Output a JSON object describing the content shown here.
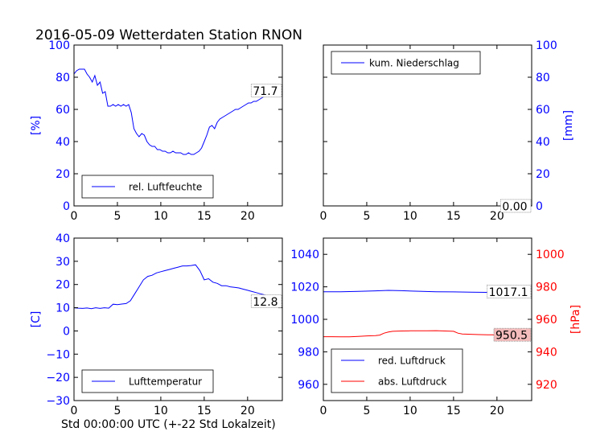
{
  "title": "2016-05-09 Wetterdaten Station RNON",
  "xlabel": "Std 00:00:00 UTC (+-22 Std Lokalzeit)",
  "colors": {
    "blue": "#0000ff",
    "red": "#ff0000",
    "axis": "#000000",
    "frame": "#000000"
  },
  "chart_data": [
    {
      "id": "humidity",
      "type": "line",
      "xlim": [
        0,
        24
      ],
      "ylim": [
        0,
        100
      ],
      "xticks": [
        "0",
        "5",
        "10",
        "15",
        "20"
      ],
      "yticks": [
        "0",
        "20",
        "40",
        "60",
        "80",
        "100"
      ],
      "ylabel": "[%]",
      "ylabel_color": "#0000ff",
      "last_value": "71.7",
      "legend": {
        "entries": [
          "rel. Luftfeuchte"
        ],
        "position": "lower-left"
      },
      "series": [
        {
          "name": "rel. Luftfeuchte",
          "color": "#0000ff",
          "x": [
            0,
            0.3,
            0.6,
            0.9,
            1.2,
            1.5,
            1.8,
            2.1,
            2.4,
            2.7,
            3.0,
            3.3,
            3.6,
            3.9,
            4.2,
            4.5,
            4.8,
            5.1,
            5.4,
            5.7,
            6.0,
            6.3,
            6.6,
            6.9,
            7.2,
            7.5,
            7.8,
            8.1,
            8.4,
            8.7,
            9.0,
            9.3,
            9.6,
            9.9,
            10.2,
            10.5,
            10.8,
            11.1,
            11.4,
            11.7,
            12.0,
            12.3,
            12.6,
            12.9,
            13.2,
            13.5,
            13.8,
            14.1,
            14.4,
            14.7,
            15.0,
            15.3,
            15.6,
            15.9,
            16.2,
            16.5,
            16.8,
            17.1,
            17.4,
            17.7,
            18.0,
            18.3,
            18.6,
            18.9,
            19.2,
            19.5,
            19.8,
            20.1,
            20.4,
            20.7,
            21.0,
            21.3,
            21.6,
            21.9,
            22.2,
            22.5,
            22.8,
            23.1,
            23.4
          ],
          "y": [
            82,
            84,
            85,
            85,
            85,
            82,
            80,
            77,
            81,
            75,
            77,
            70,
            71,
            62,
            62,
            63,
            62,
            63,
            62,
            63,
            62,
            63,
            58,
            48,
            45,
            43,
            45,
            44,
            40,
            38,
            37,
            37,
            35,
            35,
            34,
            34,
            33,
            33,
            34,
            33,
            33,
            33,
            32,
            32,
            33,
            32,
            32,
            33,
            34,
            36,
            40,
            44,
            49,
            50,
            48,
            52,
            54,
            55,
            56,
            57,
            58,
            59,
            60,
            60,
            61,
            62,
            63,
            64,
            64,
            65,
            65,
            66,
            67,
            68,
            69,
            70,
            70,
            71,
            71.7
          ]
        }
      ]
    },
    {
      "id": "precipitation",
      "type": "line",
      "xlim": [
        0,
        24
      ],
      "ylim": [
        0,
        100
      ],
      "xticks": [
        "0",
        "5",
        "10",
        "15",
        "20"
      ],
      "yticks": [
        "0",
        "20",
        "40",
        "60",
        "80",
        "100"
      ],
      "ylabel": "[mm]",
      "ylabel_color": "#0000ff",
      "last_value": "0.00",
      "legend": {
        "entries": [
          "kum. Niederschlag"
        ],
        "position": "upper-left"
      },
      "series": [
        {
          "name": "kum. Niederschlag",
          "color": "#0000ff",
          "x": [
            0,
            23.4
          ],
          "y": [
            0,
            0
          ]
        }
      ]
    },
    {
      "id": "temperature",
      "type": "line",
      "xlim": [
        0,
        24
      ],
      "ylim": [
        -30,
        40
      ],
      "xticks": [
        "0",
        "5",
        "10",
        "15",
        "20"
      ],
      "yticks": [
        "−30",
        "−20",
        "−10",
        "0",
        "10",
        "20",
        "30",
        "40"
      ],
      "ylabel": "[C]",
      "ylabel_color": "#0000ff",
      "last_value": "12.8",
      "legend": {
        "entries": [
          "Lufttemperatur"
        ],
        "position": "lower-left"
      },
      "series": [
        {
          "name": "Lufttemperatur",
          "color": "#0000ff",
          "x": [
            0,
            0.5,
            1.0,
            1.5,
            2.0,
            2.5,
            3.0,
            3.5,
            4.0,
            4.5,
            5.0,
            5.5,
            6.0,
            6.5,
            7.0,
            7.5,
            8.0,
            8.5,
            9.0,
            9.5,
            10.0,
            10.5,
            11.0,
            11.5,
            12.0,
            12.5,
            13.0,
            13.5,
            14.0,
            14.5,
            15.0,
            15.5,
            16.0,
            16.5,
            17.0,
            17.5,
            18.0,
            18.5,
            19.0,
            19.5,
            20.0,
            20.5,
            21.0,
            21.5,
            22.0,
            22.5,
            23.0,
            23.4
          ],
          "y": [
            10,
            9.8,
            9.7,
            9.9,
            9.6,
            10,
            9.7,
            10,
            9.8,
            11.5,
            11.3,
            11.6,
            11.8,
            13,
            16,
            19,
            22,
            23.5,
            24,
            25,
            25.5,
            26,
            26.5,
            27,
            27.5,
            28,
            28,
            28.2,
            28.5,
            26,
            22,
            22.5,
            21,
            20.5,
            19.5,
            19.5,
            19,
            18.8,
            18.5,
            18,
            17.5,
            17,
            16.5,
            16,
            15.5,
            15,
            14,
            12.8
          ]
        }
      ]
    },
    {
      "id": "pressure",
      "type": "line",
      "xlim": [
        0,
        24
      ],
      "ylim": [
        950,
        1050
      ],
      "ylim_right": [
        910,
        1010
      ],
      "xticks": [
        "0",
        "5",
        "10",
        "15",
        "20"
      ],
      "yticks": [
        "960",
        "980",
        "1000",
        "1020",
        "1040"
      ],
      "yticks_right": [
        "920",
        "940",
        "960",
        "980",
        "1000"
      ],
      "ylabel": "",
      "ylabel_right": "[hPa]",
      "ylabel_right_color": "#ff0000",
      "last_value": "1017.1",
      "last_value_right": "950.5",
      "legend": {
        "entries": [
          "red. Luftdruck",
          "abs. Luftdruck"
        ],
        "position": "lower-left"
      },
      "series": [
        {
          "name": "red. Luftdruck",
          "color": "#0000ff",
          "axis": "left",
          "x": [
            0,
            2,
            4,
            6,
            7.5,
            9,
            11,
            13,
            15,
            17,
            19,
            21,
            23.4
          ],
          "y": [
            1017,
            1017,
            1017.2,
            1017.5,
            1017.8,
            1017.6,
            1017.3,
            1017,
            1016.9,
            1016.7,
            1016.6,
            1016.8,
            1017.1
          ]
        },
        {
          "name": "abs. Luftdruck",
          "color": "#ff0000",
          "axis": "right",
          "x": [
            0,
            1,
            2,
            3,
            4,
            5,
            6,
            6.5,
            7,
            7.5,
            8,
            9,
            10,
            11,
            12,
            13,
            14,
            15,
            15.5,
            16,
            17,
            18,
            19,
            20,
            21,
            22,
            23.4
          ],
          "y": [
            949.3,
            949.3,
            949.2,
            949.2,
            949.5,
            949.8,
            950,
            950.3,
            951.5,
            952.2,
            952.6,
            952.8,
            952.9,
            952.9,
            952.9,
            953,
            952.8,
            952.6,
            951.5,
            951,
            950.8,
            950.6,
            950.5,
            950.5,
            950.6,
            950.5,
            950.5
          ]
        }
      ]
    }
  ]
}
